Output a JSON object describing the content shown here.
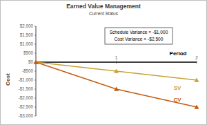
{
  "chart_data": {
    "type": "line",
    "title": "Earned Value Management",
    "subtitle": "Current Status",
    "x_label": "Period",
    "y_label": "Cost",
    "annotations": [
      "Schedule Variance = -$1,000",
      "Cost Variance = -$2,500"
    ],
    "x": [
      0,
      1,
      2
    ],
    "xlim": [
      0,
      2
    ],
    "xticks": [
      1,
      2
    ],
    "ylim": [
      -3000,
      2000
    ],
    "yticks": [
      {
        "value": 2000,
        "label": "$2,000"
      },
      {
        "value": 1500,
        "label": "$1,500"
      },
      {
        "value": 1000,
        "label": "$1,000"
      },
      {
        "value": 500,
        "label": "$500"
      },
      {
        "value": 0,
        "label": "$0"
      },
      {
        "value": -500,
        "label": "-$500"
      },
      {
        "value": -1000,
        "label": "-$1,000"
      },
      {
        "value": -1500,
        "label": "-$1,500"
      },
      {
        "value": -2000,
        "label": "-$2,000"
      },
      {
        "value": -2500,
        "label": "-$2,500"
      },
      {
        "value": -3000,
        "label": "-$3,000"
      }
    ],
    "grid": false,
    "series": [
      {
        "name": "SV",
        "color": "#c9a232",
        "marker": "triangle",
        "line_style": "solid",
        "values": [
          0,
          -500,
          -1000
        ]
      },
      {
        "name": "CV",
        "color": "#c55a11",
        "marker": "triangle",
        "line_style": "solid",
        "values": [
          0,
          -1500,
          -2500
        ]
      }
    ]
  }
}
